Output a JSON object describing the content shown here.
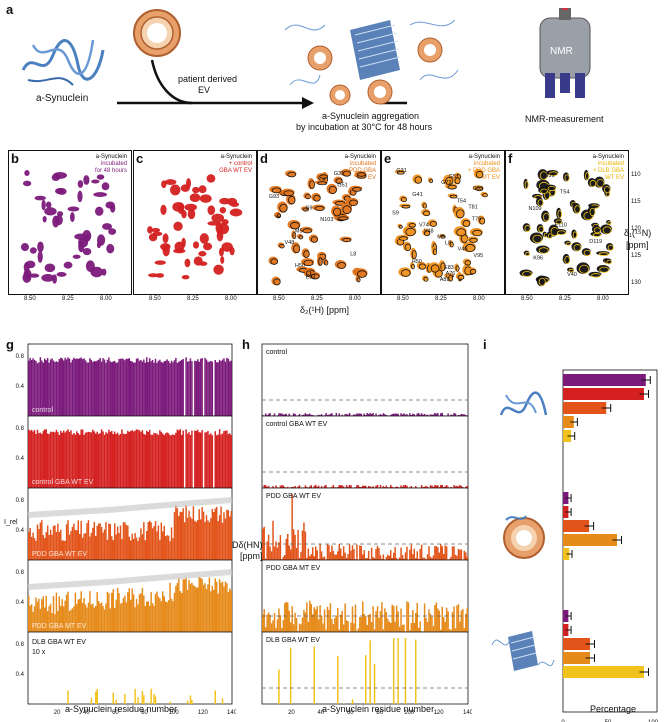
{
  "panel_a": {
    "letter": "a",
    "asyn_label": "a-Synuclein",
    "ev_label_1": "patient derived",
    "ev_label_2": "EV",
    "agg_label_1": "a-Synuclein aggregation",
    "agg_label_2": "by incubation at 30°C for 48 hours",
    "nmr_text": "NMR",
    "nmr_label": "NMR-measurement"
  },
  "hsqc": {
    "x_label": "δ₂(¹H) [ppm]",
    "y_label_1": "δ₁(¹⁵N)",
    "y_label_2": "[ppm]",
    "x_ticks": [
      "8.50",
      "8.25",
      "8.00"
    ],
    "y_ticks": [
      "110",
      "115",
      "120",
      "125",
      "130"
    ],
    "panels": [
      {
        "letter": "b",
        "legend": [
          "a-Synuclein",
          "incubated",
          "for 48 hours"
        ],
        "peaks": []
      },
      {
        "letter": "c",
        "legend": [
          "a-Synuclein",
          "+ control",
          "GBA WT EV"
        ],
        "peaks": []
      },
      {
        "letter": "d",
        "legend": [
          "a-Synuclein",
          "incubated",
          "+ PDD GBA",
          "WT EV"
        ],
        "peaks": [
          "G31",
          "G51",
          "G93",
          "S9",
          "N103",
          "M5",
          "V48",
          "L8",
          "H50",
          "E83"
        ]
      },
      {
        "letter": "e",
        "legend": [
          "a-Synuclein",
          "incubated",
          "+ PDD GBA",
          "MT EV"
        ],
        "peaks": [
          "G31",
          "G51",
          "G73",
          "G93",
          "G41",
          "T54",
          "T81",
          "S9",
          "T75",
          "V74",
          "V48",
          "M5",
          "L8",
          "V40",
          "V95",
          "H50",
          "E83",
          "A76",
          "A89"
        ]
      },
      {
        "letter": "f",
        "legend": [
          "a-Synuclein",
          "incubated",
          "+ DLB GBA",
          "WT EV"
        ],
        "peaks": [
          "G31",
          "T54",
          "N109",
          "E110",
          "D119",
          "K96",
          "V40"
        ]
      }
    ]
  },
  "panel_g": {
    "letter": "g",
    "y_label": "I_rel",
    "x_label": "a-Synuclein residue number",
    "x_ticks": [
      "20",
      "40",
      "60",
      "80",
      "100",
      "120",
      "140"
    ],
    "y_ticks": [
      "0.8",
      "0.4"
    ],
    "rows": [
      {
        "label": "control",
        "color": "#7b1a7b"
      },
      {
        "label": "control GBA WT EV",
        "color": "#d42020"
      },
      {
        "label": "PDD GBA WT EV",
        "color": "#e2541a"
      },
      {
        "label": "PDD GBA MT EV",
        "color": "#e68a1a"
      },
      {
        "label": "DLB GBA WT EV",
        "sublabel": "10 x",
        "color": "#f2c21a"
      }
    ]
  },
  "panel_h": {
    "letter": "h",
    "y_label_1": "Dδ(HN)",
    "y_label_2": "[ppm]",
    "x_label": "a-Synuclein residue number",
    "x_ticks": [
      "20",
      "40",
      "60",
      "80",
      "100",
      "120",
      "140"
    ],
    "rows": [
      {
        "label": "control",
        "color": "#7b1a7b"
      },
      {
        "label": "control GBA WT EV",
        "color": "#d42020"
      },
      {
        "label": "PDD GBA WT EV",
        "color": "#e2541a"
      },
      {
        "label": "PDD GBA MT EV",
        "color": "#e68a1a"
      },
      {
        "label": "DLB GBA WT EV",
        "color": "#f2c21a"
      }
    ]
  },
  "panel_i": {
    "letter": "i",
    "x_label": "Percentage",
    "x_ticks": [
      "0",
      "50",
      "100"
    ],
    "groups": [
      {
        "state": "monomer",
        "values": [
          92,
          90,
          48,
          12,
          9
        ],
        "errors": [
          5,
          5,
          5,
          4,
          4
        ]
      },
      {
        "state": "vesicle-bound",
        "values": [
          6,
          6,
          29,
          60,
          7
        ],
        "errors": [
          3,
          3,
          5,
          5,
          3
        ]
      },
      {
        "state": "aggregated",
        "values": [
          6,
          6,
          30,
          30,
          90
        ],
        "errors": [
          3,
          3,
          5,
          5,
          5
        ]
      }
    ],
    "colors": [
      "#7b1a7b",
      "#d42020",
      "#e2541a",
      "#e68a1a",
      "#f2c21a"
    ]
  }
}
